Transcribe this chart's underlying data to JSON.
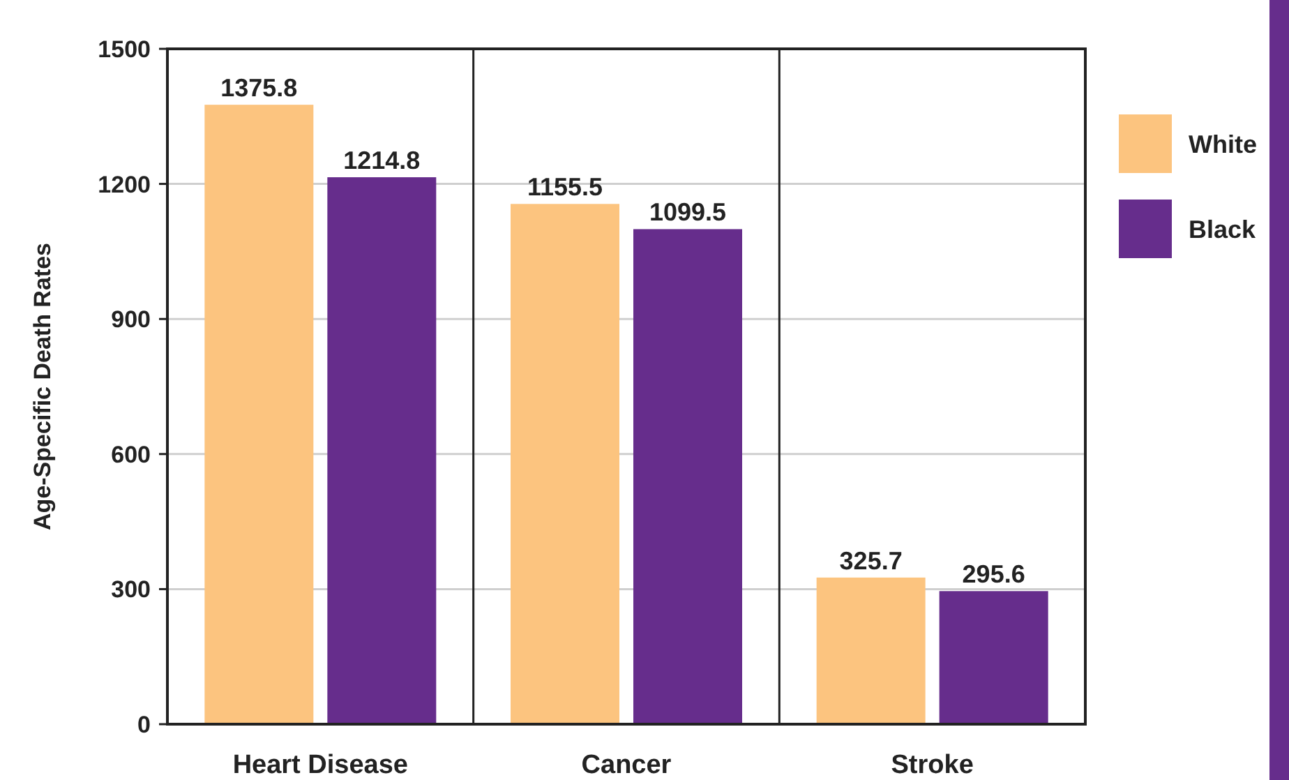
{
  "chart_data": {
    "type": "bar",
    "ylabel": "Age-Specific Death Rates",
    "categories": [
      "Heart Disease",
      "Cancer",
      "Stroke"
    ],
    "series": [
      {
        "name": "White",
        "color": "#fcc47f",
        "values": [
          1375.8,
          1155.5,
          325.7
        ]
      },
      {
        "name": "Black",
        "color": "#662d8c",
        "values": [
          1214.8,
          1099.5,
          295.6
        ]
      }
    ],
    "ylim": [
      0,
      1500
    ],
    "yticks": [
      0,
      300,
      600,
      900,
      1200,
      1500
    ],
    "grid": "y",
    "legend": "right",
    "data_labels": true
  }
}
